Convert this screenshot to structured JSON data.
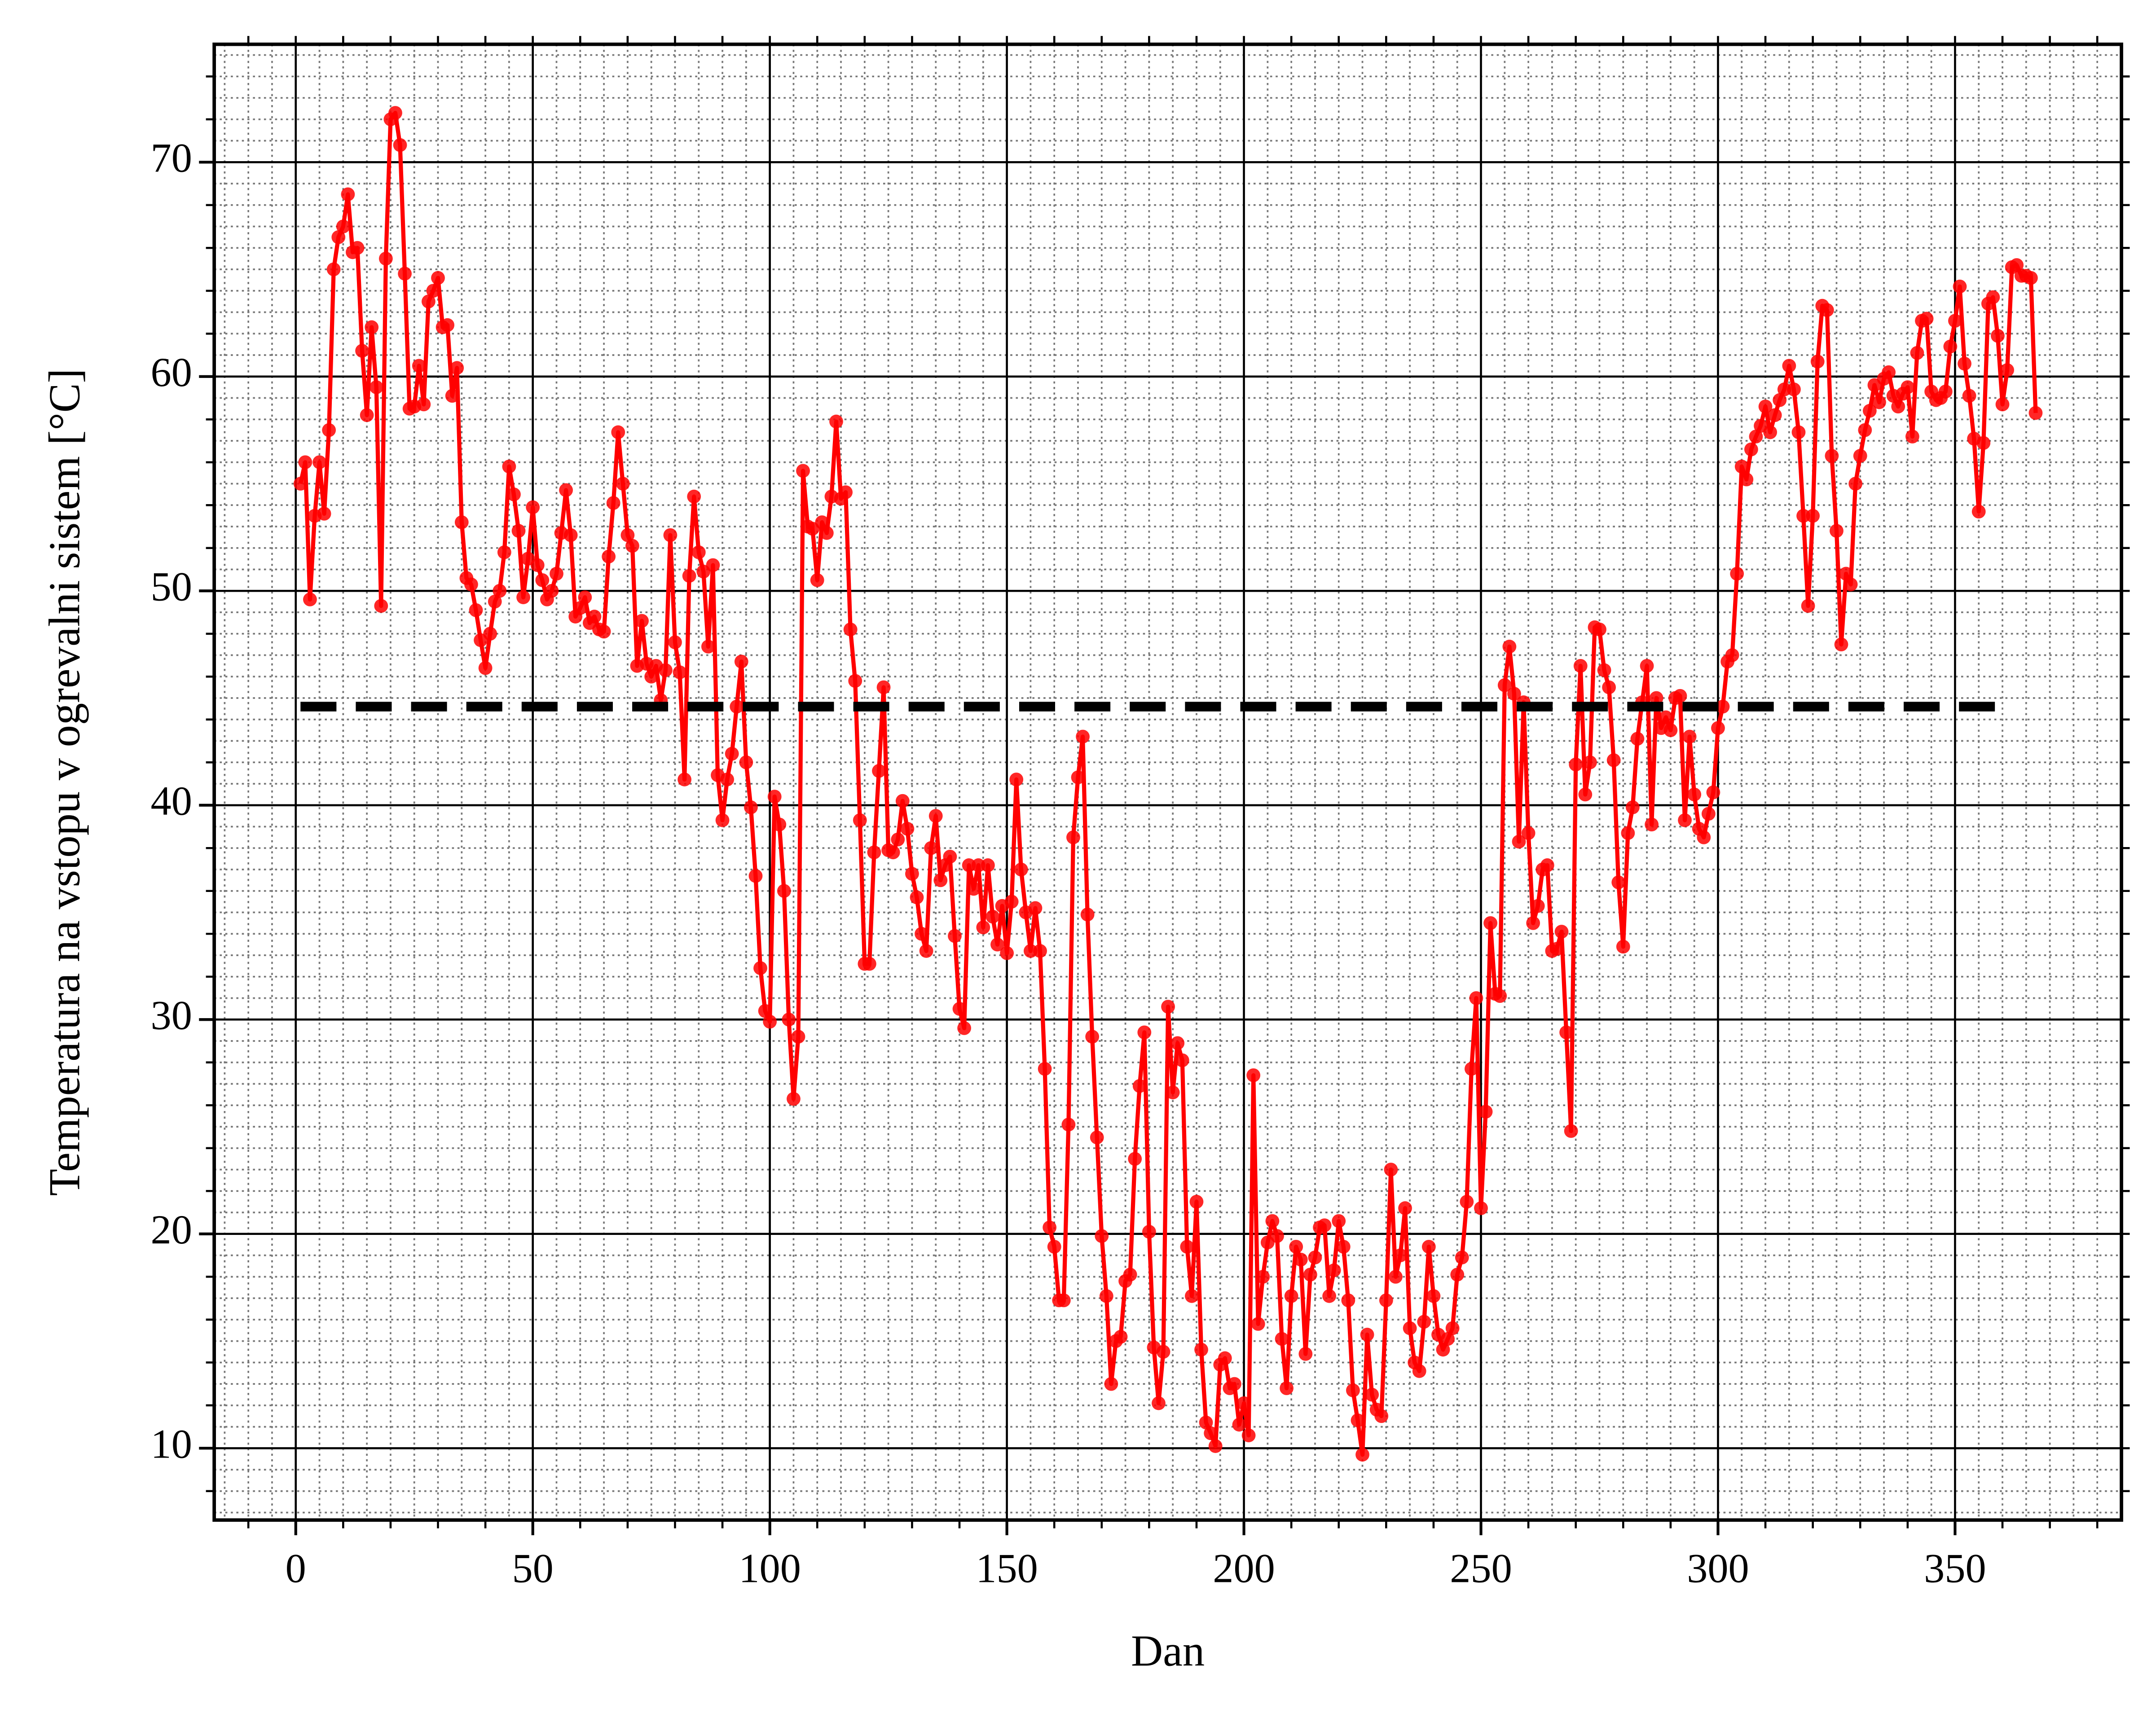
{
  "chart_data": {
    "type": "line",
    "x_label": "Dan",
    "y_label": "Temperatura na vstopu v ogrevalni sistem [°C]",
    "color": "#ff0000",
    "xlim": [
      -17.2,
      385.1
    ],
    "ylim": [
      6.65,
      75.5
    ],
    "xticks": [
      0,
      50,
      100,
      150,
      200,
      250,
      300,
      350
    ],
    "yticks": [
      10,
      20,
      30,
      40,
      50,
      60,
      70
    ],
    "grid": true,
    "minor_grid": {
      "x": 5,
      "y": 1
    },
    "minor_ticks": {
      "x": 10,
      "y": 2
    },
    "reference_line": {
      "y": 44.6,
      "x": [
        1,
        361
      ],
      "color": "#000000"
    },
    "x": [
      1,
      2,
      3,
      4,
      5,
      6,
      7,
      8,
      9,
      10,
      11,
      12,
      13,
      14,
      15,
      16,
      17,
      18,
      19,
      20,
      21,
      22,
      23,
      24,
      25,
      26,
      27,
      28,
      29,
      30,
      31,
      32,
      33,
      34,
      35,
      36,
      37,
      38,
      39,
      40,
      41,
      42,
      43,
      44,
      45,
      46,
      47,
      48,
      49,
      50,
      51,
      52,
      53,
      54,
      55,
      56,
      57,
      58,
      59,
      60,
      61,
      62,
      63,
      64,
      65,
      66,
      67,
      68,
      69,
      70,
      71,
      72,
      73,
      74,
      75,
      76,
      77,
      78,
      79,
      80,
      81,
      82,
      83,
      84,
      85,
      86,
      87,
      88,
      89,
      90,
      91,
      92,
      93,
      94,
      95,
      96,
      97,
      98,
      99,
      100,
      101,
      102,
      103,
      104,
      105,
      106,
      107,
      108,
      109,
      110,
      111,
      112,
      113,
      114,
      115,
      116,
      117,
      118,
      119,
      120,
      121,
      122,
      123,
      124,
      125,
      126,
      127,
      128,
      129,
      130,
      131,
      132,
      133,
      134,
      135,
      136,
      137,
      138,
      139,
      140,
      141,
      142,
      143,
      144,
      145,
      146,
      147,
      148,
      149,
      150,
      151,
      152,
      153,
      154,
      155,
      156,
      157,
      158,
      159,
      160,
      161,
      162,
      163,
      164,
      165,
      166,
      167,
      168,
      169,
      170,
      171,
      172,
      173,
      174,
      175,
      176,
      177,
      178,
      179,
      180,
      181,
      182,
      183,
      184,
      185,
      186,
      187,
      188,
      189,
      190,
      191,
      192,
      193,
      194,
      195,
      196,
      197,
      198,
      199,
      200,
      201,
      202,
      203,
      204,
      205,
      206,
      207,
      208,
      209,
      210,
      211,
      212,
      213,
      214,
      215,
      216,
      217,
      218,
      219,
      220,
      221,
      222,
      223,
      224,
      225,
      226,
      227,
      228,
      229,
      230,
      231,
      232,
      233,
      234,
      235,
      236,
      237,
      238,
      239,
      240,
      241,
      242,
      243,
      244,
      245,
      246,
      247,
      248,
      249,
      250,
      251,
      252,
      253,
      254,
      255,
      256,
      257,
      258,
      259,
      260,
      261,
      262,
      263,
      264,
      265,
      266,
      267,
      268,
      269,
      270,
      271,
      272,
      273,
      274,
      275,
      276,
      277,
      278,
      279,
      280,
      281,
      282,
      283,
      284,
      285,
      286,
      287,
      288,
      289,
      290,
      291,
      292,
      293,
      294,
      295,
      296,
      297,
      298,
      299,
      300,
      301,
      302,
      303,
      304,
      305,
      306,
      307,
      308,
      309,
      310,
      311,
      312,
      313,
      314,
      315,
      316,
      317,
      318,
      319,
      320,
      321,
      322,
      323,
      324,
      325,
      326,
      327,
      328,
      329,
      330,
      331,
      332,
      333,
      334,
      335,
      336,
      337,
      338,
      339,
      340,
      341,
      342,
      343,
      344,
      345,
      346,
      347,
      348,
      349,
      350,
      351,
      352,
      353,
      354,
      355,
      356,
      357,
      358,
      359,
      360,
      361,
      362,
      363,
      364,
      365,
      366,
      367
    ],
    "values": [
      55,
      56,
      49.6,
      53.5,
      56,
      53.6,
      57.5,
      65,
      66.5,
      67,
      68.5,
      65.8,
      66,
      61.2,
      58.2,
      62.3,
      59.5,
      49.3,
      65.5,
      72,
      72.3,
      70.8,
      64.8,
      58.5,
      58.6,
      60.5,
      58.7,
      63.5,
      64,
      64.6,
      62.3,
      62.4,
      59.1,
      60.4,
      53.2,
      50.6,
      50.3,
      49.1,
      47.7,
      46.4,
      48,
      49.5,
      50,
      51.8,
      55.8,
      54.5,
      52.8,
      49.7,
      51.5,
      53.9,
      51.2,
      50.5,
      49.6,
      50,
      50.8,
      52.7,
      54.7,
      52.6,
      48.8,
      49.2,
      49.7,
      48.5,
      48.8,
      48.2,
      48.1,
      51.6,
      54.1,
      57.4,
      55,
      52.6,
      52.1,
      46.5,
      48.6,
      46.6,
      46,
      46.5,
      44.9,
      46.3,
      52.6,
      47.6,
      46.2,
      41.2,
      50.7,
      54.4,
      51.8,
      50.9,
      47.4,
      51.2,
      41.4,
      39.3,
      41.2,
      42.4,
      44.6,
      46.7,
      42,
      39.9,
      36.7,
      32.4,
      30.4,
      29.9,
      40.4,
      39.1,
      36,
      30,
      26.3,
      29.2,
      55.6,
      53,
      52.9,
      50.5,
      53.2,
      52.7,
      54.4,
      57.9,
      54.3,
      54.6,
      48.2,
      45.8,
      39.3,
      32.6,
      32.6,
      37.8,
      41.6,
      45.5,
      37.9,
      37.8,
      38.4,
      40.2,
      38.9,
      36.8,
      35.7,
      34,
      33.2,
      38,
      39.5,
      36.5,
      37.2,
      37.6,
      33.9,
      30.5,
      29.6,
      37.2,
      36.1,
      37.2,
      34.3,
      37.2,
      34.8,
      33.5,
      35.3,
      33.1,
      35.5,
      41.2,
      37,
      35,
      33.2,
      35.2,
      33.2,
      27.7,
      20.3,
      19.4,
      16.9,
      16.9,
      25.1,
      38.5,
      41.3,
      43.2,
      34.9,
      29.2,
      24.5,
      19.9,
      17.1,
      13,
      15,
      15.2,
      17.8,
      18.1,
      23.5,
      26.9,
      29.4,
      20.1,
      14.7,
      12.1,
      14.5,
      30.6,
      26.6,
      28.9,
      28.1,
      19.4,
      17.1,
      21.5,
      14.6,
      11.2,
      10.7,
      10.1,
      13.9,
      14.2,
      12.8,
      13,
      11.1,
      12.1,
      10.6,
      27.4,
      15.8,
      18,
      19.6,
      20.6,
      19.9,
      15.1,
      12.8,
      17.1,
      19.4,
      18.8,
      14.4,
      18.1,
      18.9,
      20.3,
      20.4,
      17.1,
      18.3,
      20.6,
      19.4,
      16.9,
      12.7,
      11.3,
      9.7,
      15.3,
      12.5,
      11.8,
      11.5,
      16.9,
      23,
      18,
      19,
      21.2,
      15.6,
      14,
      13.6,
      15.9,
      19.4,
      17.1,
      15.3,
      14.6,
      15.1,
      15.6,
      18.1,
      18.9,
      21.5,
      27.7,
      31,
      21.2,
      25.7,
      34.5,
      31.2,
      31.1,
      45.6,
      47.4,
      45.2,
      38.3,
      44.8,
      38.7,
      34.5,
      35.3,
      37,
      37.2,
      33.2,
      33.3,
      34.1,
      29.4,
      24.8,
      41.9,
      46.5,
      40.5,
      42,
      48.3,
      48.2,
      46.3,
      45.5,
      42.1,
      36.4,
      33.4,
      38.7,
      39.9,
      43.1,
      44.8,
      46.5,
      39.1,
      45,
      43.6,
      44.1,
      43.5,
      45,
      45.1,
      39.3,
      43.2,
      40.5,
      38.9,
      38.5,
      39.6,
      40.6,
      43.6,
      44.6,
      46.7,
      47,
      50.8,
      55.8,
      55.2,
      56.6,
      57.2,
      57.7,
      58.6,
      57.4,
      58.2,
      58.9,
      59.4,
      60.5,
      59.4,
      57.4,
      53.5,
      49.3,
      53.5,
      60.7,
      63.3,
      63.1,
      56.3,
      52.8,
      47.5,
      50.8,
      50.3,
      55,
      56.3,
      57.5,
      58.4,
      59.6,
      58.8,
      59.9,
      60.2,
      59.1,
      58.6,
      59.2,
      59.5,
      57.2,
      61.1,
      62.6,
      62.7,
      59.3,
      58.9,
      59,
      59.3,
      61.4,
      62.6,
      64.2,
      60.6,
      59.1,
      57.1,
      53.7,
      56.9,
      63.4,
      63.7,
      61.9,
      58.7,
      60.3,
      65.1,
      65.2,
      64.7,
      64.7,
      64.6,
      58.3
    ]
  }
}
